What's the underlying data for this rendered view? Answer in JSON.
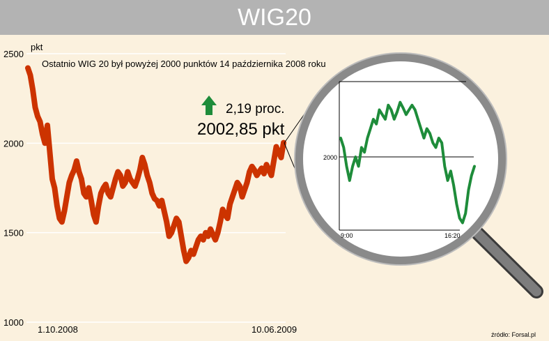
{
  "header": {
    "title": "WIG20"
  },
  "chart_data": {
    "type": "line",
    "title": "WIG20",
    "ylabel": "pkt",
    "ylim": [
      1000,
      2500
    ],
    "yticks": [
      "2500",
      "2000",
      "1500",
      "1000"
    ],
    "x_labels": [
      "1.10.2008",
      "10.06.2009"
    ],
    "annotation": "Ostatnio WIG 20 był powyżej 2000 punktów 14 października 2008 roku",
    "change": "2,19 proc.",
    "last_value": "2002,85 pkt",
    "colors": {
      "main_line": "#cc3300",
      "intraday_line": "#1e8c3a",
      "up_arrow": "#1e8c3a",
      "grid": "#ffffff"
    },
    "series": [
      {
        "values": [
          2420,
          2380,
          2300,
          2200,
          2150,
          2120,
          2050,
          2000,
          2100,
          1950,
          1800,
          1750,
          1650,
          1580,
          1560,
          1620,
          1700,
          1780,
          1820,
          1850,
          1900,
          1840,
          1800,
          1720,
          1700,
          1750,
          1680,
          1600,
          1560,
          1650,
          1720,
          1750,
          1770,
          1720,
          1700,
          1750,
          1800,
          1840,
          1820,
          1760,
          1780,
          1840,
          1800,
          1780,
          1760,
          1800,
          1850,
          1920,
          1880,
          1820,
          1780,
          1720,
          1690,
          1680,
          1650,
          1680,
          1620,
          1560,
          1480,
          1500,
          1540,
          1580,
          1560,
          1480,
          1400,
          1340,
          1360,
          1400,
          1380,
          1420,
          1460,
          1480,
          1460,
          1500,
          1480,
          1520,
          1490,
          1460,
          1500,
          1560,
          1630,
          1600,
          1580,
          1660,
          1700,
          1740,
          1780,
          1760,
          1700,
          1740,
          1780,
          1840,
          1870,
          1850,
          1820,
          1840,
          1860,
          1830,
          1880,
          1850,
          1820,
          1900,
          1980,
          1950,
          1920,
          2002.85
        ]
      }
    ],
    "intraday": {
      "x_labels": [
        "9:00",
        "16:20"
      ],
      "ytick": "2000",
      "ylim": [
        1880,
        2080
      ],
      "values": [
        2020,
        2010,
        1990,
        1975,
        1990,
        2000,
        1990,
        2010,
        2005,
        2020,
        2030,
        2040,
        2035,
        2050,
        2045,
        2040,
        2055,
        2050,
        2040,
        2048,
        2058,
        2052,
        2045,
        2050,
        2055,
        2050,
        2040,
        2030,
        2020,
        2030,
        2025,
        2015,
        2010,
        2020,
        2015,
        1990,
        1975,
        1985,
        1970,
        1950,
        1935,
        1930,
        1940,
        1965,
        1980,
        1990
      ]
    }
  }
}
